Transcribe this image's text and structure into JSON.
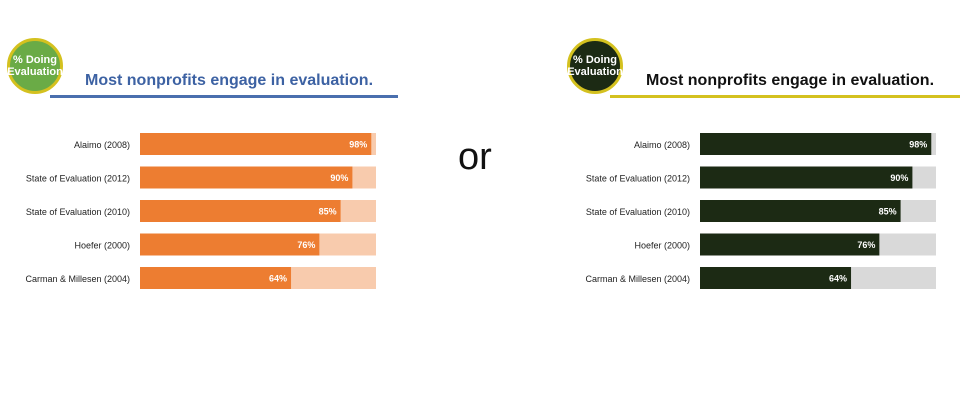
{
  "separator": "or",
  "panels": [
    {
      "badge": {
        "line1": "% Doing",
        "line2": "Evaluation"
      },
      "title": "Most nonprofits engage in evaluation.",
      "colors": {
        "badge": "#6aab46",
        "title": "#3d62a3",
        "underline": "#4a6fae",
        "bar": "#ed7d31",
        "track": "#f8cbad",
        "label": "#ffffff",
        "category": "#222222"
      }
    },
    {
      "badge": {
        "line1": "% Doing",
        "line2": "Evaluation"
      },
      "title": "Most nonprofits engage in evaluation.",
      "colors": {
        "badge": "#1c2a14",
        "title": "#111111",
        "underline": "#d4c11f",
        "bar": "#1c2a14",
        "track": "#d9d9d9",
        "label": "#ffffff",
        "category": "#222222"
      }
    }
  ],
  "chart_data": [
    {
      "type": "bar",
      "orientation": "horizontal",
      "categories": [
        "Alaimo (2008)",
        "State of Evaluation (2012)",
        "State of Evaluation (2010)",
        "Hoefer (2000)",
        "Carman & Millesen (2004)"
      ],
      "values": [
        98,
        90,
        85,
        76,
        64
      ],
      "data_labels": [
        "98%",
        "90%",
        "85%",
        "76%",
        "64%"
      ],
      "xlim": [
        0,
        100
      ]
    },
    {
      "type": "bar",
      "orientation": "horizontal",
      "categories": [
        "Alaimo (2008)",
        "State of Evaluation (2012)",
        "State of Evaluation (2010)",
        "Hoefer (2000)",
        "Carman & Millesen (2004)"
      ],
      "values": [
        98,
        90,
        85,
        76,
        64
      ],
      "data_labels": [
        "98%",
        "90%",
        "85%",
        "76%",
        "64%"
      ],
      "xlim": [
        0,
        100
      ]
    }
  ]
}
